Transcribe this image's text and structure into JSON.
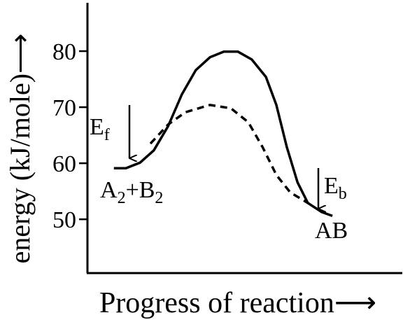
{
  "chart_data": {
    "type": "line",
    "xlabel": "Progress of reaction⟶",
    "ylabel": "energy (kJ/mole)⟶",
    "xlim": [
      0,
      10
    ],
    "ylim": [
      40.4,
      88.5
    ],
    "yticks": [
      50,
      60,
      70,
      80
    ],
    "series": [
      {
        "color": "#000000",
        "style": "solid",
        "x": [
          0.84,
          1.22,
          1.67,
          2.11,
          2.56,
          3.0,
          3.44,
          3.89,
          4.33,
          4.78,
          5.22,
          5.67,
          6.0,
          6.33,
          6.67,
          7.0,
          7.44,
          7.78
        ],
        "values": [
          59.1,
          59.1,
          60.1,
          62.3,
          66.6,
          72.3,
          76.6,
          78.9,
          79.9,
          79.9,
          78.5,
          75.4,
          70.4,
          62.9,
          56.6,
          52.9,
          51.3,
          50.6
        ]
      },
      {
        "color": "#000000",
        "style": "dashed",
        "x": [
          2.0,
          2.56,
          3.11,
          3.89,
          4.56,
          5.11,
          5.56,
          6.0,
          6.44,
          7.0
        ],
        "values": [
          63.5,
          66.9,
          69.1,
          70.4,
          69.8,
          67.3,
          62.9,
          57.9,
          54.8,
          52.9
        ]
      }
    ],
    "annotations": [
      {
        "parts": [
          {
            "text": "E"
          },
          {
            "sub": "f"
          }
        ]
      },
      {
        "parts": [
          {
            "text": "A"
          },
          {
            "sub": "2"
          },
          {
            "text": "+B"
          },
          {
            "sub": "2"
          }
        ]
      },
      {
        "parts": [
          {
            "text": "E"
          },
          {
            "sub": "b"
          }
        ]
      },
      {
        "parts": [
          {
            "text": "AB"
          }
        ]
      }
    ]
  }
}
